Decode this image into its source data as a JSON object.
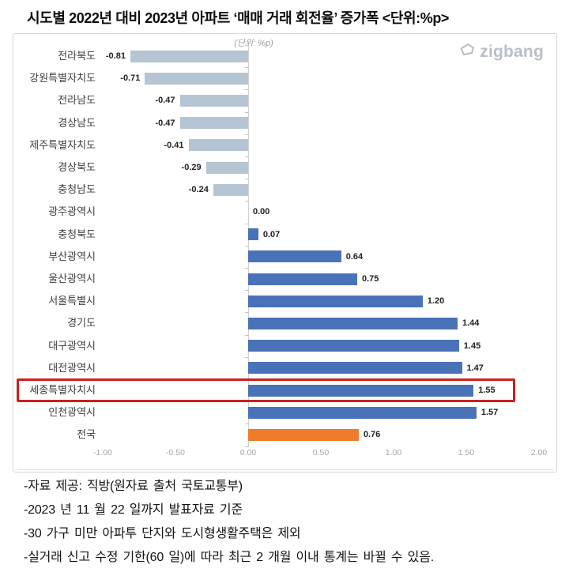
{
  "header": {
    "title": "시도별 2022년 대비 2023년 아파트 ‘매매 거래 회전율’ 증가폭 <단위:%p>"
  },
  "brand": {
    "name": "zigbang",
    "icon": "zigbang-logo-mark"
  },
  "chart": {
    "unit_note": "(단위: %p)"
  },
  "chart_data": {
    "type": "bar",
    "orientation": "horizontal",
    "title": "시도별 2022년 대비 2023년 아파트 ‘매매 거래 회전율’ 증가폭",
    "unit": "%p",
    "categories": [
      "전라북도",
      "강원특별자치도",
      "전라남도",
      "경상남도",
      "제주특별자치도",
      "경상북도",
      "충청남도",
      "광주광역시",
      "충청북도",
      "부산광역시",
      "울산광역시",
      "서울특별시",
      "경기도",
      "대구광역시",
      "대전광역시",
      "세종특별자치시",
      "인천광역시",
      "전국"
    ],
    "values": [
      -0.81,
      -0.71,
      -0.47,
      -0.47,
      -0.41,
      -0.29,
      -0.24,
      0.0,
      0.07,
      0.64,
      0.75,
      1.2,
      1.44,
      1.45,
      1.47,
      1.55,
      1.57,
      0.76
    ],
    "value_labels": [
      "-0.81",
      "-0.71",
      "-0.47",
      "-0.47",
      "-0.41",
      "-0.29",
      "-0.24",
      "0.00",
      "0.07",
      "0.64",
      "0.75",
      "1.20",
      "1.44",
      "1.45",
      "1.47",
      "1.55",
      "1.57",
      "0.76"
    ],
    "color_roles": [
      "negative",
      "negative",
      "negative",
      "negative",
      "negative",
      "negative",
      "negative",
      "zero",
      "positive",
      "positive",
      "positive",
      "positive",
      "positive",
      "positive",
      "positive",
      "positive",
      "positive",
      "total"
    ],
    "highlighted_category": "세종특별자치시",
    "xlim": [
      -1.0,
      2.0
    ],
    "x_ticks": [
      "-1.00",
      "-0.50",
      "0.00",
      "0.50",
      "1.00",
      "1.50",
      "2.00"
    ],
    "grid": false,
    "legend": null
  },
  "colors": {
    "bar_negative": "#b6c5d3",
    "bar_positive": "#4a72b8",
    "bar_total": "#ee7c2b",
    "highlight_box": "#c9201d",
    "axis_text": "#a6a6a6",
    "value_text": "#212121",
    "category_text": "#3d3d3d",
    "brand_gray": "#b9bfc7"
  },
  "footnotes": [
    "-자료 제공: 직방(원자료 출처 국토교통부)",
    "-2023 년 11 월 22 일까지 발표자료 기준",
    "-30 가구 미만 아파투 단지와 도시형생활주택은 제외",
    "-실거래 신고 수정 기한(60 일)에 따라 최근 2 개월 이내 통계는 바뀔 수 있음."
  ]
}
